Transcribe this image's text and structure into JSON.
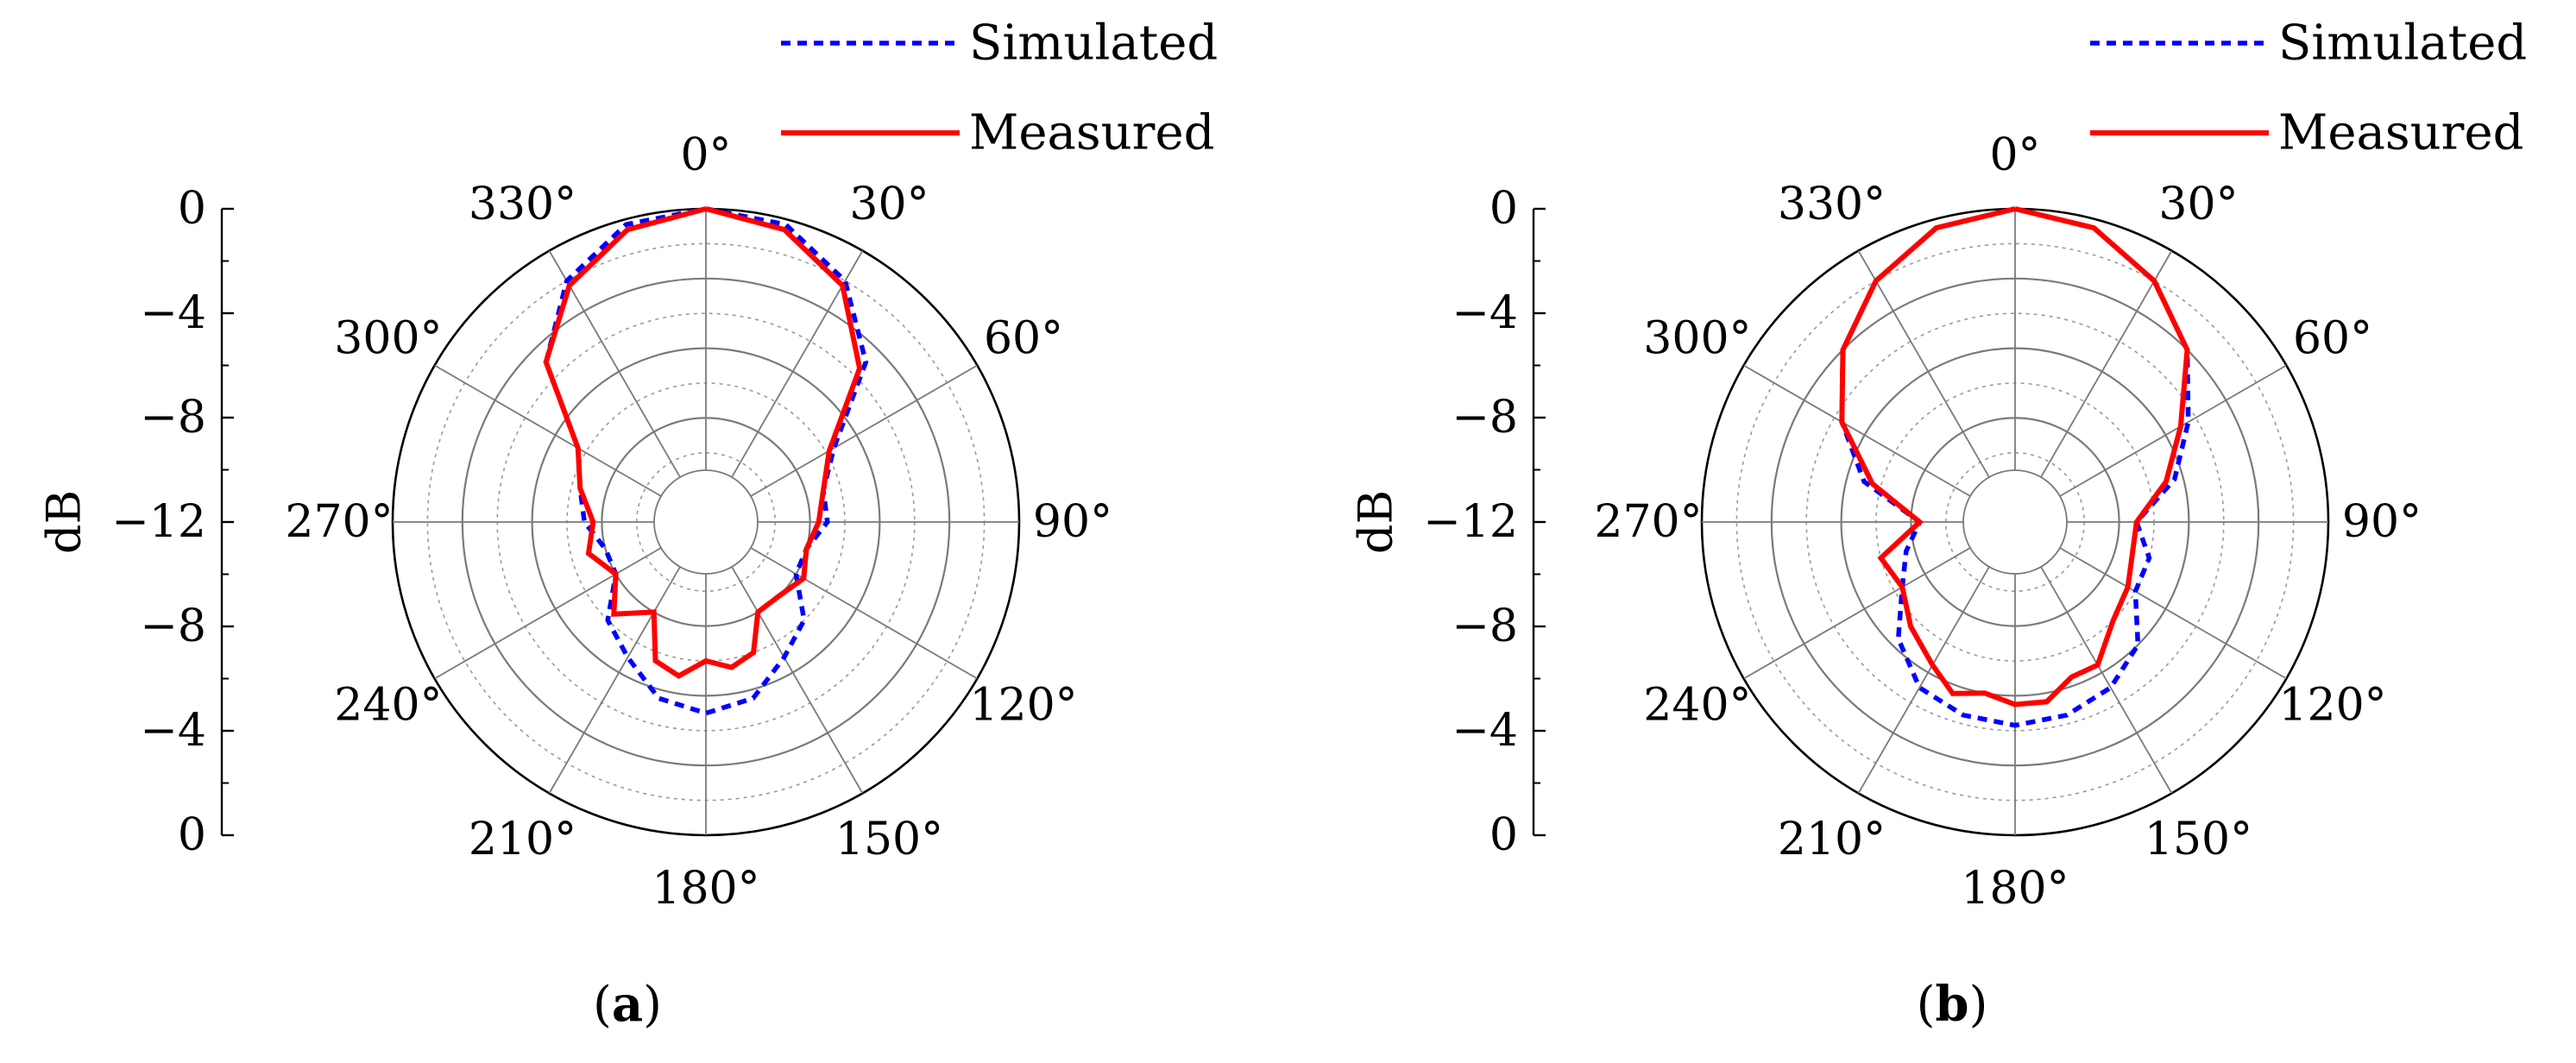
{
  "chart_data": [
    {
      "panel_label": "a",
      "type": "polar-line",
      "angle_unit": "deg",
      "angle_ticks": [
        "0°",
        "30°",
        "60°",
        "90°",
        "120°",
        "150°",
        "180°",
        "210°",
        "240°",
        "270°",
        "300°",
        "330°"
      ],
      "r_axis_label": "dB",
      "r_ticks_upper": [
        "0",
        "−4",
        "−8",
        "−12"
      ],
      "r_ticks_lower": [
        "−8",
        "−4",
        "0"
      ],
      "r_range_db": [
        -15,
        0
      ],
      "grid": true,
      "legend_position": "top-right",
      "series": [
        {
          "name": "Simulated",
          "color": "#0000ff",
          "dash": "dashed",
          "angles": [
            0,
            15,
            30,
            45,
            60,
            75,
            90,
            105,
            120,
            135,
            150,
            165,
            180,
            195,
            210,
            225,
            240,
            255,
            270,
            285,
            300,
            315,
            330,
            345,
            360
          ],
          "values": [
            0,
            -0.3,
            -2,
            -5,
            -9.5,
            -11,
            -11,
            -12,
            -12,
            -10,
            -9,
            -7.5,
            -7,
            -7.5,
            -9,
            -10,
            -12,
            -12,
            -11,
            -10.5,
            -9.5,
            -5,
            -2,
            -0.3,
            0
          ]
        },
        {
          "name": "Measured",
          "color": "#ff0000",
          "dash": "solid",
          "angles": [
            0,
            15,
            30,
            45,
            60,
            75,
            90,
            105,
            120,
            135,
            150,
            160,
            170,
            180,
            190,
            200,
            210,
            225,
            240,
            255,
            270,
            285,
            300,
            315,
            330,
            345,
            360
          ],
          "values": [
            0,
            -0.6,
            -2.3,
            -5.5,
            -9.8,
            -11,
            -11.5,
            -12,
            -11.5,
            -12,
            -12,
            -10,
            -9.5,
            -10,
            -9,
            -9.5,
            -12,
            -10.5,
            -12,
            -11,
            -11.5,
            -10.5,
            -9.5,
            -5,
            -2.3,
            -0.6,
            0
          ]
        }
      ]
    },
    {
      "panel_label": "b",
      "type": "polar-line",
      "angle_unit": "deg",
      "angle_ticks": [
        "0°",
        "30°",
        "60°",
        "90°",
        "120°",
        "150°",
        "180°",
        "210°",
        "240°",
        "270°",
        "300°",
        "330°"
      ],
      "r_axis_label": "dB",
      "r_ticks_upper": [
        "0",
        "−4",
        "−8",
        "−12"
      ],
      "r_ticks_lower": [
        "−8",
        "−4",
        "0"
      ],
      "r_range_db": [
        -15,
        0
      ],
      "grid": true,
      "legend_position": "top-right",
      "series": [
        {
          "name": "Simulated",
          "color": "#0000ff",
          "dash": "dashed",
          "angles": [
            0,
            15,
            30,
            45,
            60,
            75,
            90,
            105,
            120,
            135,
            150,
            165,
            180,
            195,
            210,
            225,
            240,
            255,
            270,
            285,
            300,
            315,
            330,
            345,
            360
          ],
          "values": [
            0,
            -0.5,
            -2,
            -4,
            -6.5,
            -8.5,
            -11,
            -10,
            -10,
            -8,
            -7,
            -6.5,
            -6.3,
            -6.5,
            -7,
            -8.5,
            -10.5,
            -11.5,
            -12.5,
            -9,
            -6.5,
            -4,
            -2,
            -0.5,
            0
          ]
        },
        {
          "name": "Measured",
          "color": "#ff0000",
          "dash": "solid",
          "angles": [
            0,
            15,
            30,
            45,
            60,
            75,
            90,
            105,
            120,
            135,
            150,
            160,
            170,
            180,
            190,
            200,
            210,
            225,
            240,
            255,
            270,
            285,
            300,
            315,
            330,
            345,
            360
          ],
          "values": [
            0,
            -0.5,
            -2,
            -4,
            -7,
            -9,
            -11,
            -11,
            -10.5,
            -10,
            -8.5,
            -8.5,
            -7.5,
            -7.5,
            -8,
            -7.5,
            -8.5,
            -9.5,
            -10.5,
            -10,
            -12.5,
            -9.5,
            -6.5,
            -4,
            -2,
            -0.5,
            0
          ]
        }
      ]
    }
  ]
}
